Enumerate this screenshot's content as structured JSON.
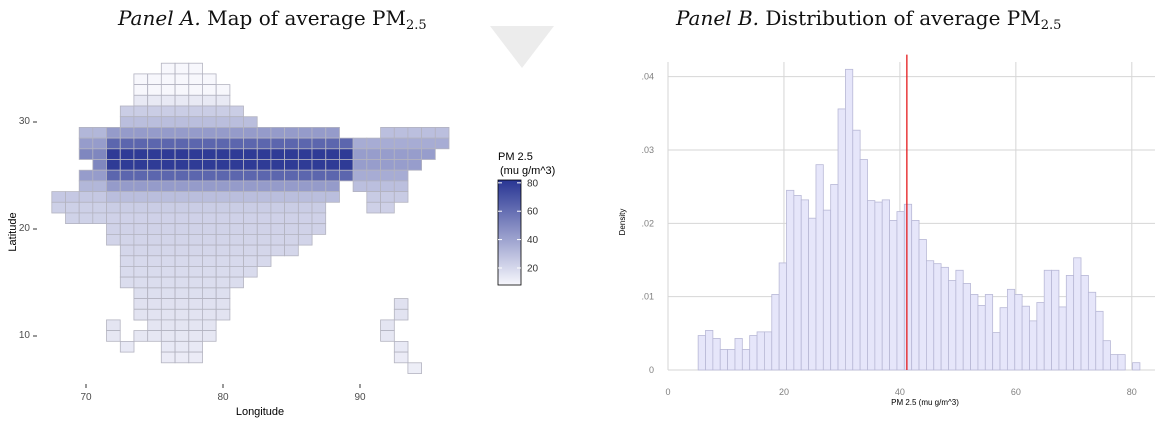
{
  "panel_a": {
    "title_prefix": "Panel A.",
    "title_main": "Map of average PM",
    "title_sub": "2.5"
  },
  "panel_b": {
    "title_prefix": "Panel B.",
    "title_main": "Distribution of average PM",
    "title_sub": "2.5"
  },
  "chart_data": [
    {
      "type": "heatmap",
      "xlabel": "Longitude",
      "ylabel": "Latitude",
      "xticks": [
        70,
        80,
        90
      ],
      "yticks": [
        10,
        20,
        30
      ],
      "xlim": [
        68,
        97
      ],
      "ylim": [
        6.5,
        36
      ],
      "grid": false,
      "legend": {
        "title_line1": "PM 2.5",
        "title_line2": "(mu g/m^3)",
        "ticks": [
          20,
          40,
          60,
          80
        ],
        "range": [
          8,
          82
        ],
        "color_low": "#f7f7fc",
        "color_high": "#283593"
      },
      "cell_size_deg": 1,
      "cells_note_value_scale": "PM 2.5 (mu g/m^3)"
    },
    {
      "type": "bar",
      "subtype": "histogram",
      "xlabel": "PM 2.5 (mu g/m^3)",
      "ylabel": "Density",
      "xlim": [
        0,
        84
      ],
      "ylim": [
        0,
        0.042
      ],
      "xticks": [
        "0",
        "20",
        "40",
        "60",
        "80"
      ],
      "xtick_values": [
        0,
        20,
        40,
        60,
        80
      ],
      "yticks": [
        "0",
        ".01",
        ".02",
        ".03",
        ".04"
      ],
      "ytick_values": [
        0,
        0.01,
        0.02,
        0.03,
        0.04
      ],
      "grid": true,
      "bin_start": 5.2,
      "bin_width": 1.27,
      "values": [
        0.0047,
        0.0054,
        0.0043,
        0.0028,
        0.0028,
        0.0043,
        0.0028,
        0.0047,
        0.0052,
        0.0052,
        0.0103,
        0.0146,
        0.0245,
        0.0238,
        0.0232,
        0.0207,
        0.028,
        0.0218,
        0.0253,
        0.0356,
        0.041,
        0.0327,
        0.0287,
        0.0231,
        0.0229,
        0.0232,
        0.0204,
        0.0216,
        0.0226,
        0.0204,
        0.0178,
        0.0149,
        0.0145,
        0.014,
        0.0122,
        0.0136,
        0.0118,
        0.0103,
        0.0088,
        0.0103,
        0.0051,
        0.0085,
        0.011,
        0.0103,
        0.0087,
        0.0067,
        0.0092,
        0.0136,
        0.0136,
        0.0086,
        0.0129,
        0.0153,
        0.0129,
        0.0106,
        0.008,
        0.004,
        0.0021,
        0.0021,
        0.0,
        0.001
      ],
      "mean_line": {
        "value": 41.2,
        "color": "#e41a1c"
      },
      "bar_fill": "#e6e6fa",
      "bar_stroke": "#b8b8d6"
    }
  ]
}
